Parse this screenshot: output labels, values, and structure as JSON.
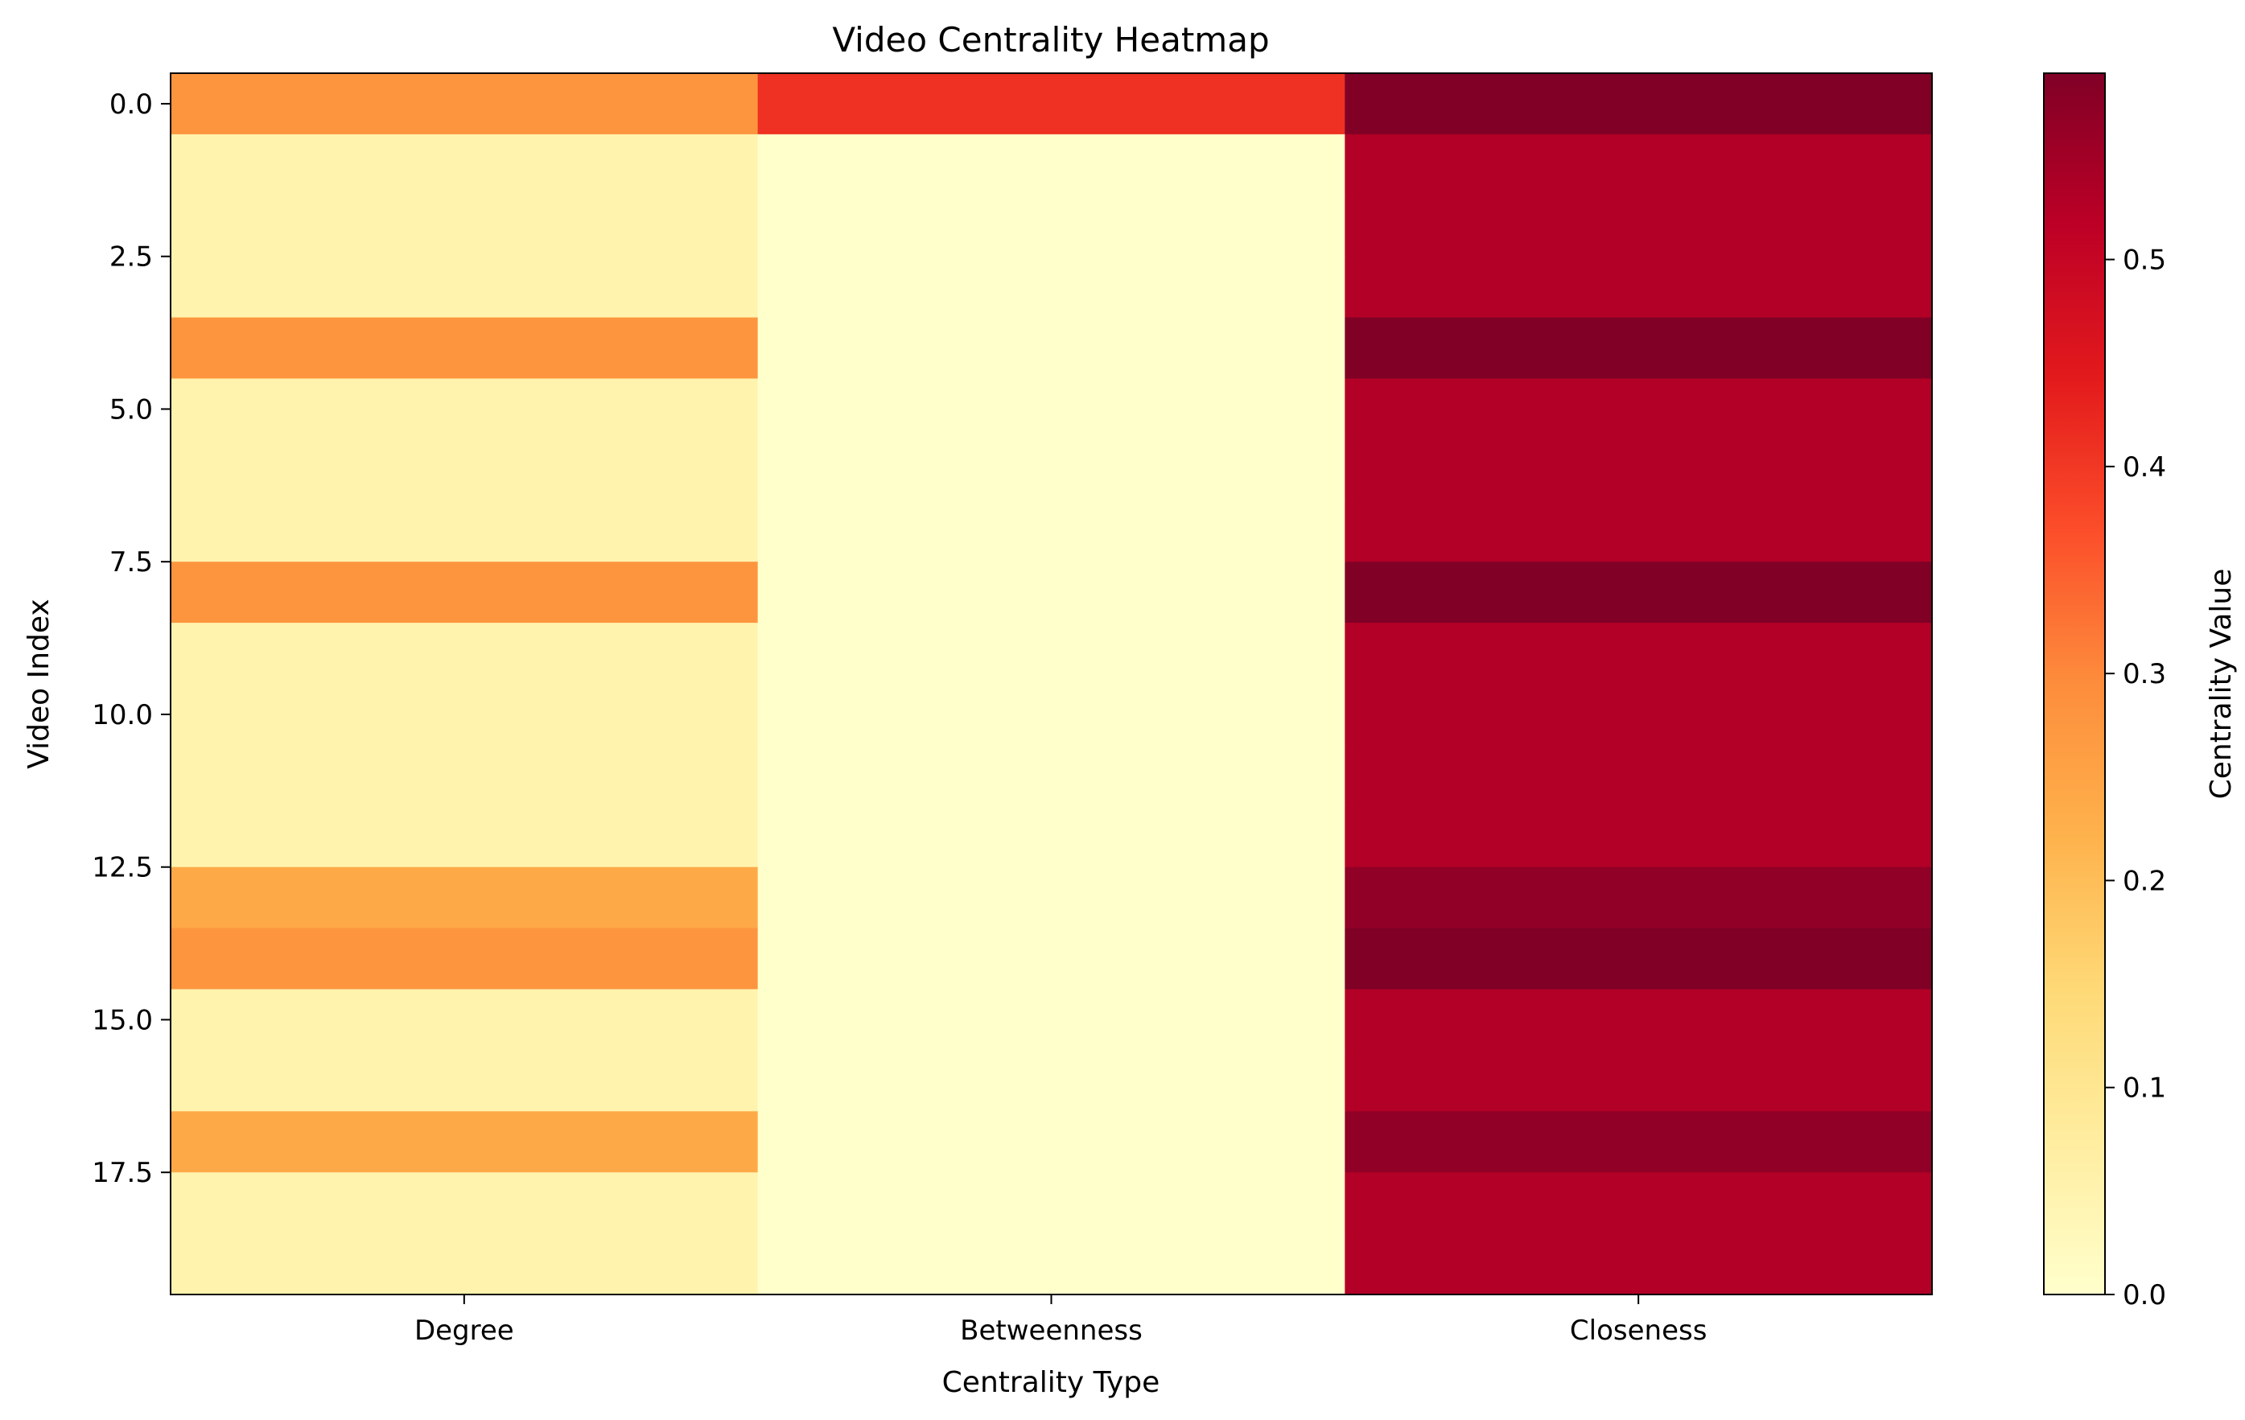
{
  "chart_data": {
    "type": "heatmap",
    "title": "Video Centrality Heatmap",
    "xlabel": "Centrality Type",
    "ylabel": "Video Index",
    "columns": [
      "Degree",
      "Betweenness",
      "Closeness"
    ],
    "rows": [
      0,
      1,
      2,
      3,
      4,
      5,
      6,
      7,
      8,
      9,
      10,
      11,
      12,
      13,
      14,
      15,
      16,
      17,
      18,
      19
    ],
    "values": [
      [
        0.28,
        0.41,
        0.59
      ],
      [
        0.05,
        0.0,
        0.53
      ],
      [
        0.05,
        0.0,
        0.53
      ],
      [
        0.05,
        0.0,
        0.53
      ],
      [
        0.28,
        0.0,
        0.59
      ],
      [
        0.05,
        0.0,
        0.53
      ],
      [
        0.05,
        0.0,
        0.53
      ],
      [
        0.05,
        0.0,
        0.53
      ],
      [
        0.28,
        0.0,
        0.59
      ],
      [
        0.05,
        0.0,
        0.53
      ],
      [
        0.05,
        0.0,
        0.53
      ],
      [
        0.05,
        0.0,
        0.53
      ],
      [
        0.05,
        0.0,
        0.53
      ],
      [
        0.24,
        0.0,
        0.57
      ],
      [
        0.28,
        0.0,
        0.59
      ],
      [
        0.05,
        0.0,
        0.53
      ],
      [
        0.05,
        0.0,
        0.53
      ],
      [
        0.24,
        0.0,
        0.57
      ],
      [
        0.05,
        0.0,
        0.53
      ],
      [
        0.05,
        0.0,
        0.53
      ]
    ],
    "y_ticks": [
      "0.0",
      "2.5",
      "5.0",
      "7.5",
      "10.0",
      "12.5",
      "15.0",
      "17.5"
    ],
    "y_tick_values": [
      0,
      2.5,
      5,
      7.5,
      10,
      12.5,
      15,
      17.5
    ],
    "colorbar": {
      "label": "Centrality Value",
      "range": [
        0.0,
        0.59
      ],
      "ticks": [
        "0.0",
        "0.1",
        "0.2",
        "0.3",
        "0.4",
        "0.5"
      ],
      "tick_values": [
        0,
        0.1,
        0.2,
        0.3,
        0.4,
        0.5
      ],
      "colormap": "YlOrRd",
      "stops": [
        "#ffffcc",
        "#ffeda0",
        "#fed976",
        "#feb24c",
        "#fd8d3c",
        "#fc4e2a",
        "#e31a1c",
        "#bd0026",
        "#800026"
      ]
    }
  }
}
